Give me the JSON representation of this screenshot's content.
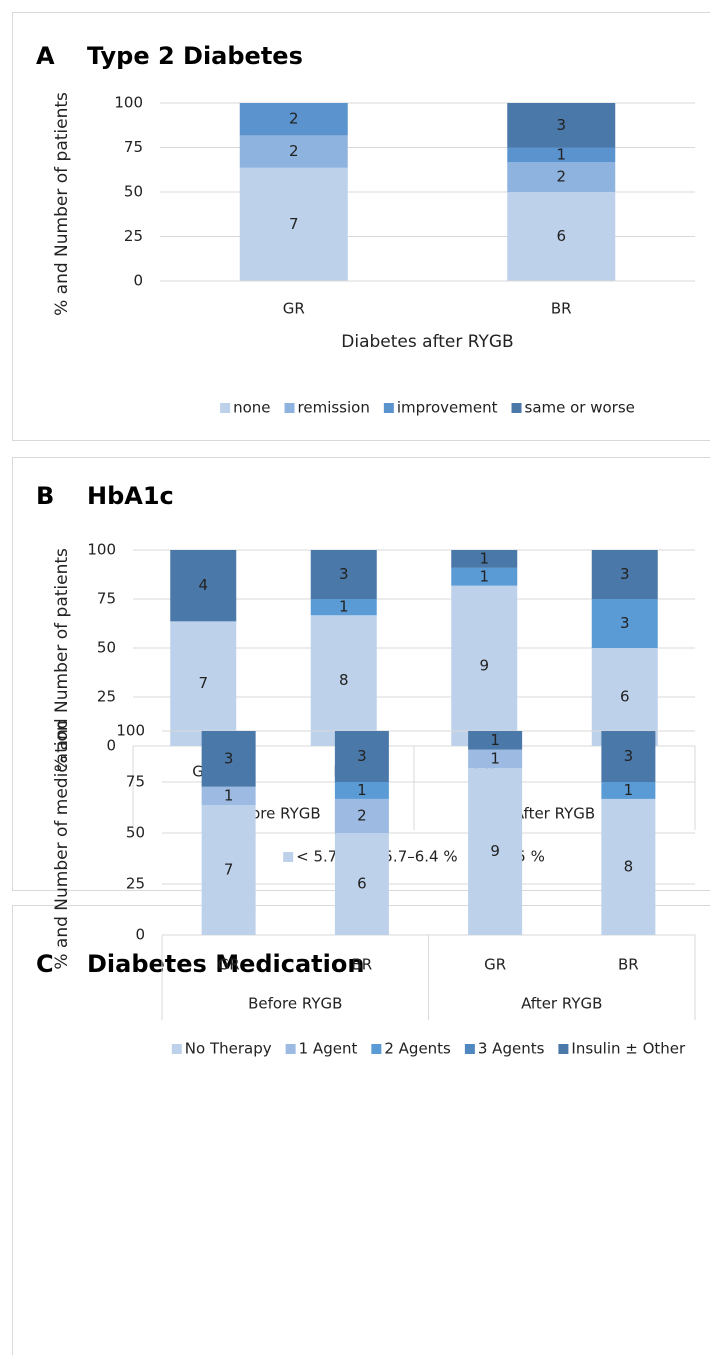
{
  "chart_data": [
    {
      "type": "stacked-bar",
      "panel": "A",
      "title": "Type 2 Diabetes",
      "y_label": "% and Number of patients",
      "x_label": "Diabetes after RYGB",
      "categories": [
        "GR",
        "BR"
      ],
      "series": [
        {
          "name": "none",
          "color": "#bdd1ea",
          "values": [
            63.6,
            50
          ],
          "counts": [
            7,
            6
          ]
        },
        {
          "name": "remission",
          "color": "#8fb3df",
          "values": [
            18.2,
            16.7
          ],
          "counts": [
            2,
            2
          ]
        },
        {
          "name": "improvement",
          "color": "#5b93cf",
          "values": [
            18.2,
            8.3
          ],
          "counts": [
            2,
            1
          ]
        },
        {
          "name": "same or worse",
          "color": "#4a78a8",
          "values": [
            0,
            25
          ],
          "counts": [
            null,
            3
          ]
        }
      ],
      "ylim": [
        0,
        100
      ],
      "yticks": [
        0,
        25,
        50,
        75,
        100
      ],
      "grid": true
    },
    {
      "type": "stacked-bar",
      "panel": "B",
      "title": "HbA1c",
      "y_label": "% and Number of patients",
      "categories": [
        "GR",
        "BR",
        "GR",
        "BR"
      ],
      "groups": [
        "Before RYGB",
        "After RYGB"
      ],
      "series": [
        {
          "name": "< 5.7 %",
          "color": "#bdd1ea",
          "values": [
            63.6,
            66.7,
            81.8,
            50
          ],
          "counts": [
            7,
            8,
            9,
            6
          ]
        },
        {
          "name": "5.7–6.4 %",
          "color": "#5b9bd5",
          "values": [
            0,
            8.3,
            9.1,
            25
          ],
          "counts": [
            null,
            1,
            1,
            3
          ]
        },
        {
          "name": "> 6.5 %",
          "color": "#4a78a8",
          "values": [
            36.4,
            25,
            9.1,
            25
          ],
          "counts": [
            4,
            3,
            1,
            3
          ]
        }
      ],
      "ylim": [
        0,
        100
      ],
      "yticks": [
        0,
        25,
        50,
        75,
        100
      ],
      "grid": true
    },
    {
      "type": "stacked-bar",
      "panel": "C",
      "title": "Diabetes Medication",
      "y_label": "% and Number of medication",
      "categories": [
        "GR",
        "BR",
        "GR",
        "BR"
      ],
      "groups": [
        "Before RYGB",
        "After RYGB"
      ],
      "series": [
        {
          "name": "No Therapy",
          "color": "#bdd1ea",
          "values": [
            63.6,
            50,
            81.8,
            66.7
          ],
          "counts": [
            7,
            6,
            9,
            8
          ]
        },
        {
          "name": "1 Agent",
          "color": "#9dbbe2",
          "values": [
            9.1,
            16.7,
            9.1,
            0
          ],
          "counts": [
            1,
            2,
            1,
            null
          ]
        },
        {
          "name": "2 Agents",
          "color": "#5b9bd5",
          "values": [
            0,
            8.3,
            0,
            8.3
          ],
          "counts": [
            null,
            1,
            null,
            1
          ]
        },
        {
          "name": "3 Agents",
          "color": "#4f87c0",
          "values": [
            0,
            0,
            0,
            0
          ],
          "counts": [
            null,
            null,
            null,
            null
          ]
        },
        {
          "name": "Insulin ± Other",
          "color": "#4a78a8",
          "values": [
            27.3,
            25,
            9.1,
            25
          ],
          "counts": [
            3,
            3,
            1,
            3
          ]
        }
      ],
      "ylim": [
        0,
        100
      ],
      "yticks": [
        0,
        25,
        50,
        75,
        100
      ],
      "grid": true
    }
  ]
}
